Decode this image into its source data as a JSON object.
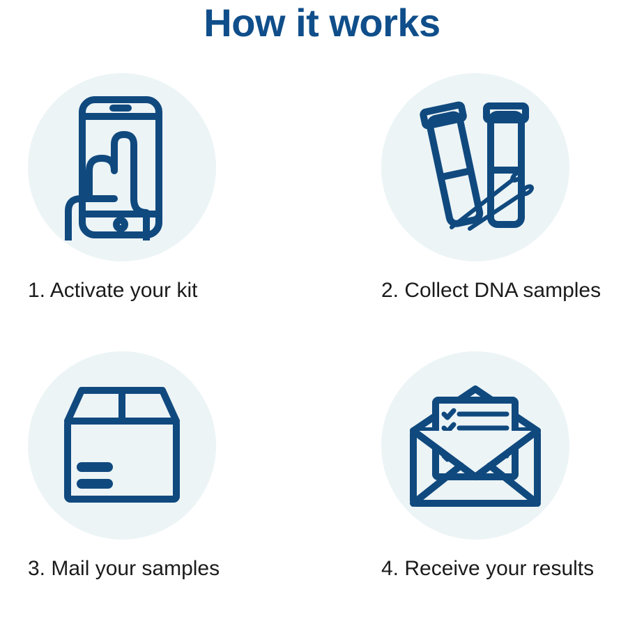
{
  "title": "How it works",
  "title_color": "#0f4e8a",
  "title_fontsize": 56,
  "circle_bg": "#ecf4f6",
  "circle_diameter": 270,
  "stroke_color": "#10497e",
  "stroke_width": 10,
  "label_color": "#1b1b1b",
  "label_fontsize": 30,
  "steps": [
    {
      "label": "1. Activate your kit",
      "icon": "phone-hand-icon"
    },
    {
      "label": "2. Collect DNA samples",
      "icon": "test-tubes-icon"
    },
    {
      "label": "3. Mail your samples",
      "icon": "box-icon"
    },
    {
      "label": "4. Receive your results",
      "icon": "envelope-results-icon"
    }
  ]
}
